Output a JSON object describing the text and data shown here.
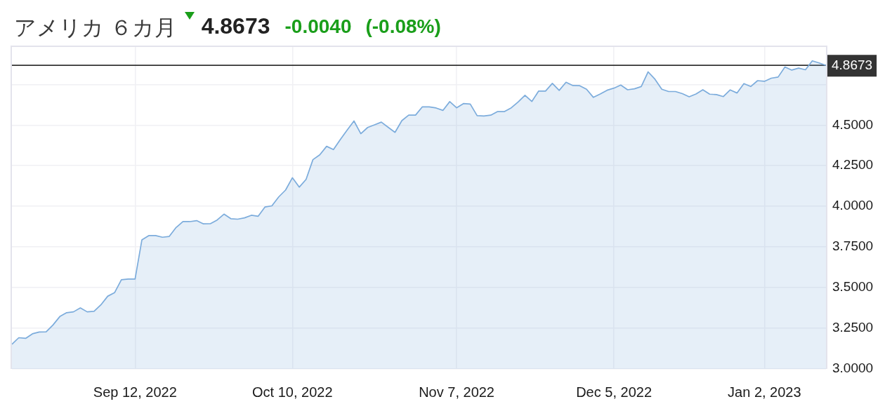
{
  "chart_data": {
    "type": "area",
    "title": "アメリカ ６カ月",
    "annotations": [
      "4.8673",
      "-0.0040",
      "(-0.08%)"
    ],
    "categories": [
      null,
      null,
      null,
      null,
      null,
      null,
      null,
      null,
      null,
      null,
      null,
      null,
      null,
      null,
      null,
      null,
      null,
      null,
      "Sep 12, 2022",
      null,
      null,
      null,
      null,
      null,
      null,
      null,
      null,
      null,
      null,
      null,
      null,
      null,
      null,
      null,
      null,
      null,
      null,
      null,
      null,
      null,
      null,
      "Oct 10, 2022",
      null,
      null,
      null,
      null,
      null,
      null,
      null,
      null,
      null,
      null,
      null,
      null,
      null,
      null,
      null,
      null,
      null,
      null,
      null,
      null,
      null,
      null,
      null,
      "Nov 7, 2022",
      null,
      null,
      null,
      null,
      null,
      null,
      null,
      null,
      null,
      null,
      null,
      null,
      null,
      null,
      null,
      null,
      null,
      null,
      null,
      null,
      null,
      null,
      "Dec 5, 2022",
      null,
      null,
      null,
      null,
      null,
      null,
      null,
      null,
      null,
      null,
      null,
      null,
      null,
      null,
      null,
      null,
      null,
      null,
      null,
      null,
      null,
      "Jan 2, 2023",
      null,
      null,
      null,
      null,
      null,
      null,
      null,
      null,
      null
    ],
    "series": [
      {
        "color": "#7cacdc",
        "values": [
          3.152,
          3.192,
          3.188,
          3.216,
          3.227,
          3.228,
          3.27,
          3.322,
          3.346,
          3.351,
          3.375,
          3.351,
          3.354,
          3.394,
          3.447,
          3.469,
          3.548,
          3.553,
          3.553,
          3.794,
          3.82,
          3.82,
          3.81,
          3.815,
          3.87,
          3.906,
          3.906,
          3.912,
          3.892,
          3.893,
          3.916,
          3.952,
          3.924,
          3.921,
          3.929,
          3.945,
          3.939,
          3.996,
          4.003,
          4.058,
          4.1,
          4.176,
          4.118,
          4.166,
          4.287,
          4.317,
          4.369,
          4.349,
          4.411,
          4.469,
          4.525,
          4.447,
          4.485,
          4.501,
          4.518,
          4.486,
          4.455,
          4.527,
          4.561,
          4.561,
          4.612,
          4.612,
          4.605,
          4.59,
          4.644,
          4.606,
          4.632,
          4.629,
          4.558,
          4.556,
          4.561,
          4.583,
          4.583,
          4.606,
          4.642,
          4.683,
          4.645,
          4.709,
          4.709,
          4.756,
          4.713,
          4.763,
          4.743,
          4.742,
          4.72,
          4.67,
          4.691,
          4.714,
          4.727,
          4.746,
          4.717,
          4.723,
          4.737,
          4.827,
          4.782,
          4.72,
          4.706,
          4.706,
          4.693,
          4.674,
          4.691,
          4.717,
          4.69,
          4.687,
          4.675,
          4.716,
          4.697,
          4.755,
          4.737,
          4.773,
          4.769,
          4.788,
          4.795,
          4.857,
          4.838,
          4.85,
          4.84,
          4.895,
          4.882,
          4.867
        ]
      }
    ],
    "ylim": [
      3,
      4.98
    ],
    "yticks": [
      {
        "value": 3,
        "label": "3.0000"
      },
      {
        "value": 3.25,
        "label": "3.2500"
      },
      {
        "value": 3.5,
        "label": "3.5000"
      },
      {
        "value": 3.75,
        "label": "3.7500"
      },
      {
        "value": 4,
        "label": "4.0000"
      },
      {
        "value": 4.25,
        "label": "4.2500"
      },
      {
        "value": 4.5,
        "label": "4.5000"
      },
      {
        "value": 4.75,
        "label": null
      }
    ],
    "ref_lines": [
      {
        "axis": "y",
        "value": 4.8673,
        "label": "4.8673",
        "color": "#333333"
      }
    ],
    "grid": true,
    "marker": "none"
  }
}
